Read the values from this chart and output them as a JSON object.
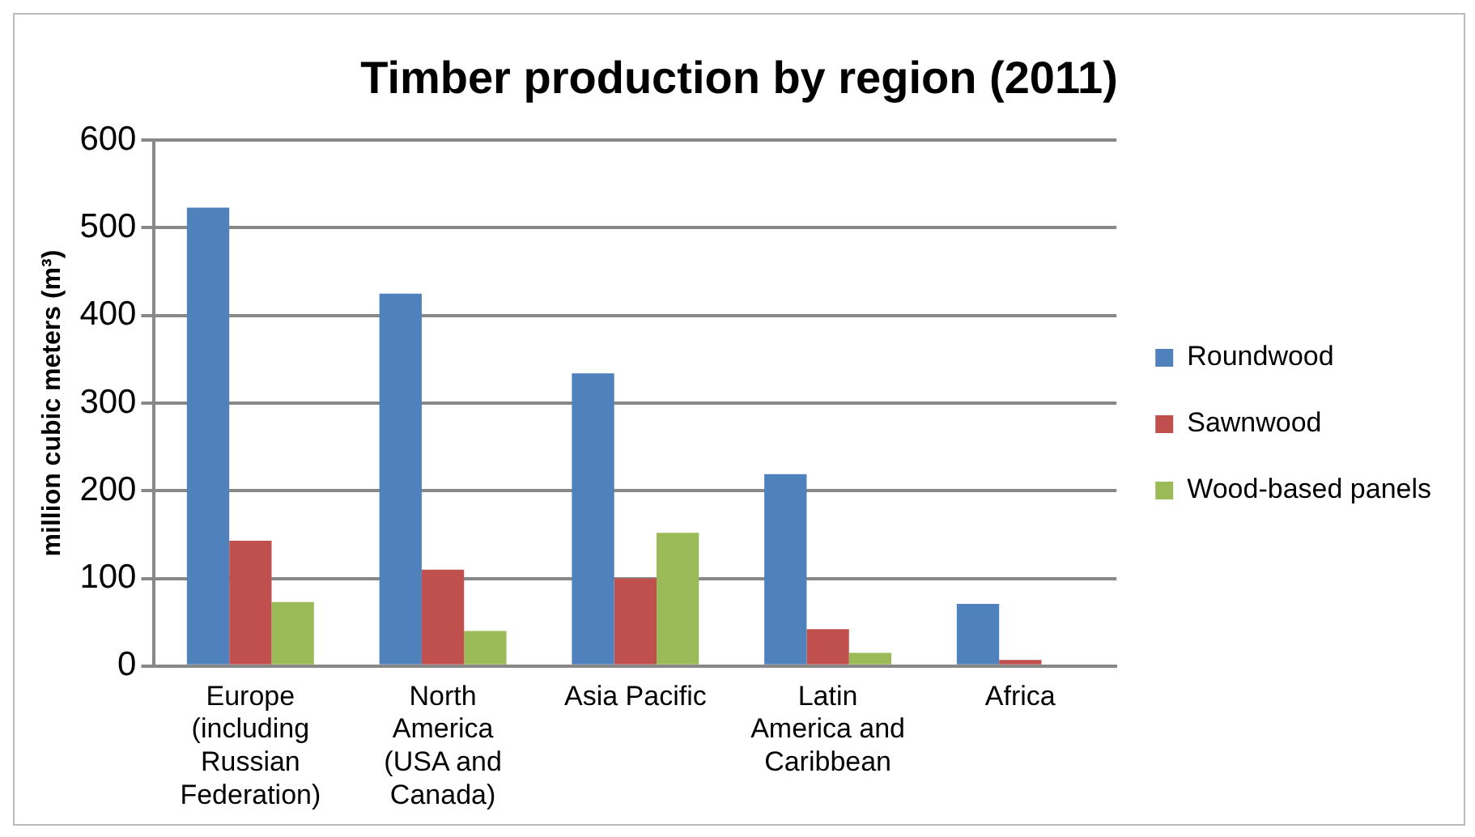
{
  "chart_data": {
    "type": "bar",
    "title": "Timber production by region (2011)",
    "ylabel": "million cubic meters (m³)",
    "categories": [
      "Europe (including Russian Federation)",
      "North America (USA and Canada)",
      "Asia Pacific",
      "Latin America and Caribbean",
      "Africa"
    ],
    "series": [
      {
        "name": "Roundwood",
        "color": "#4f81bd",
        "values": [
          523,
          425,
          334,
          219,
          71
        ]
      },
      {
        "name": "Sawnwood",
        "color": "#c0504d",
        "values": [
          143,
          110,
          100,
          42,
          7
        ]
      },
      {
        "name": "Wood-based panels",
        "color": "#9bbb59",
        "values": [
          73,
          40,
          152,
          15,
          0
        ]
      }
    ],
    "ylim": [
      0,
      600
    ],
    "yticks": [
      0,
      100,
      200,
      300,
      400,
      500,
      600
    ],
    "grid": "y",
    "legend": "right"
  }
}
